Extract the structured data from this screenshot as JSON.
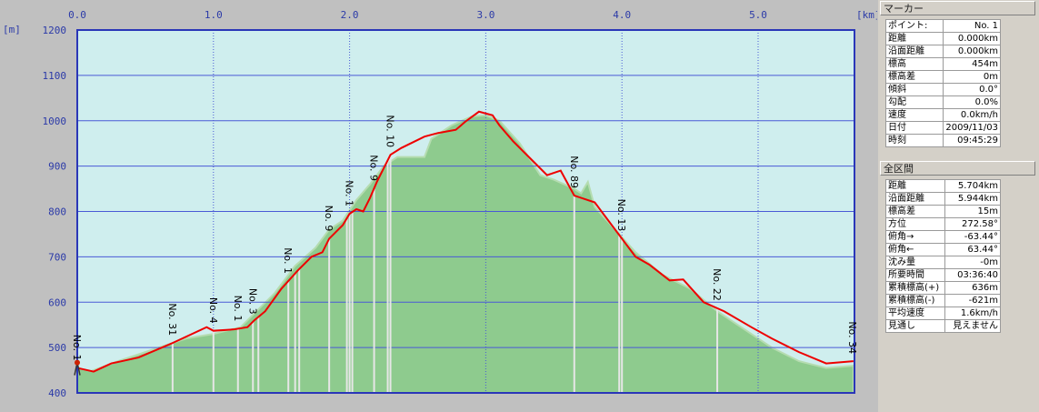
{
  "chart_data": {
    "type": "area",
    "xlabel": "[km]",
    "ylabel": "[m]",
    "xlim": [
      0,
      5.7
    ],
    "ylim": [
      400,
      1200
    ],
    "x_ticks": [
      "0.0",
      "1.0",
      "2.0",
      "3.0",
      "4.0",
      "5.0"
    ],
    "y_ticks": [
      "400",
      "500",
      "600",
      "700",
      "800",
      "900",
      "1000",
      "1100",
      "1200"
    ],
    "grid": true,
    "colors": {
      "plot_bg": "#cfeeee",
      "terrain": "#8ecb8e",
      "terrain_light": "#b5dcb0",
      "route": "#ee0000",
      "grid": "#4a5ad6",
      "frame": "#2a36b8"
    },
    "series": [
      {
        "role": "terrain",
        "x": [
          0,
          0.1,
          0.3,
          0.6,
          0.8,
          1.0,
          1.2,
          1.3,
          1.45,
          1.6,
          1.75,
          1.85,
          1.95,
          2.05,
          2.15,
          2.25,
          2.35,
          2.55,
          2.6,
          2.75,
          2.9,
          3.0,
          3.1,
          3.25,
          3.4,
          3.5,
          3.65,
          3.7,
          3.75,
          3.8,
          3.95,
          4.1,
          4.3,
          4.5,
          4.7,
          4.9,
          5.1,
          5.3,
          5.5,
          5.7
        ],
        "y": [
          455,
          448,
          470,
          500,
          520,
          530,
          545,
          575,
          620,
          680,
          720,
          760,
          780,
          825,
          860,
          900,
          920,
          920,
          960,
          990,
          1010,
          1012,
          1000,
          950,
          880,
          870,
          850,
          840,
          865,
          810,
          760,
          710,
          660,
          630,
          580,
          540,
          500,
          470,
          455,
          460
        ]
      },
      {
        "role": "route",
        "x": [
          0,
          0.12,
          0.25,
          0.45,
          0.7,
          0.95,
          1.0,
          1.15,
          1.25,
          1.3,
          1.38,
          1.5,
          1.62,
          1.72,
          1.8,
          1.85,
          1.95,
          2.0,
          2.05,
          2.1,
          2.15,
          2.2,
          2.3,
          2.38,
          2.55,
          2.65,
          2.78,
          2.85,
          2.95,
          3.05,
          3.1,
          3.2,
          3.35,
          3.45,
          3.55,
          3.65,
          3.8,
          3.95,
          4.1,
          4.2,
          4.35,
          4.45,
          4.6,
          4.75,
          4.95,
          5.1,
          5.3,
          5.5,
          5.7
        ],
        "y": [
          455,
          447,
          465,
          478,
          510,
          545,
          537,
          540,
          545,
          560,
          580,
          630,
          670,
          700,
          710,
          740,
          770,
          795,
          805,
          800,
          830,
          865,
          925,
          940,
          965,
          973,
          980,
          998,
          1020,
          1012,
          990,
          955,
          910,
          880,
          890,
          835,
          820,
          760,
          700,
          683,
          648,
          650,
          600,
          580,
          545,
          520,
          490,
          465,
          470
        ]
      }
    ],
    "markers": [
      {
        "label": "No. 1",
        "x": 0.0
      },
      {
        "label": "No. 31",
        "x": 0.7
      },
      {
        "label": "No. 4",
        "x": 1.0
      },
      {
        "label": "No. 1",
        "x": 1.18
      },
      {
        "label": "No. 3",
        "x": 1.29
      },
      {
        "label": "No. 1",
        "x": 1.55
      },
      {
        "label": "No. 9",
        "x": 1.85
      },
      {
        "label": "No. 1",
        "x": 2.0
      },
      {
        "label": "No. 9",
        "x": 2.18
      },
      {
        "label": "No. 10",
        "x": 2.3
      },
      {
        "label": "No. 89",
        "x": 3.65
      },
      {
        "label": "No. 13",
        "x": 4.0
      },
      {
        "label": "No. 22",
        "x": 4.7
      },
      {
        "label": "No. 34",
        "x": 5.7
      }
    ],
    "extra_marker_lines_x": [
      1.33,
      1.6,
      1.63,
      1.98,
      2.02,
      2.28,
      3.98
    ]
  },
  "panel": {
    "marker_title": "マーカー",
    "marker_rows": [
      {
        "label": "ポイント:",
        "value": "No. 1"
      },
      {
        "label": "距離",
        "value": "0.000km"
      },
      {
        "label": "沿面距離",
        "value": "0.000km"
      },
      {
        "label": "標高",
        "value": "454m"
      },
      {
        "label": "標高差",
        "value": "0m"
      },
      {
        "label": "傾斜",
        "value": "0.0°"
      },
      {
        "label": "勾配",
        "value": "0.0%"
      },
      {
        "label": "速度",
        "value": "0.0km/h"
      },
      {
        "label": "日付",
        "value": "2009/11/03"
      },
      {
        "label": "時刻",
        "value": "09:45:29"
      }
    ],
    "total_title": "全区間",
    "total_rows": [
      {
        "label": "距離",
        "value": "5.704km"
      },
      {
        "label": "沿面距離",
        "value": "5.944km"
      },
      {
        "label": "標高差",
        "value": "15m"
      },
      {
        "label": "方位",
        "value": "272.58°"
      },
      {
        "label": "俯角→",
        "value": "-63.44°"
      },
      {
        "label": "俯角←",
        "value": "63.44°"
      },
      {
        "label": "沈み量",
        "value": "-0m"
      },
      {
        "label": "所要時間",
        "value": "03:36:40"
      },
      {
        "label": "累積標高(+)",
        "value": "636m"
      },
      {
        "label": "累積標高(-)",
        "value": "-621m"
      },
      {
        "label": "平均速度",
        "value": "1.6km/h"
      },
      {
        "label": "見通し",
        "value": "見えません"
      }
    ]
  }
}
